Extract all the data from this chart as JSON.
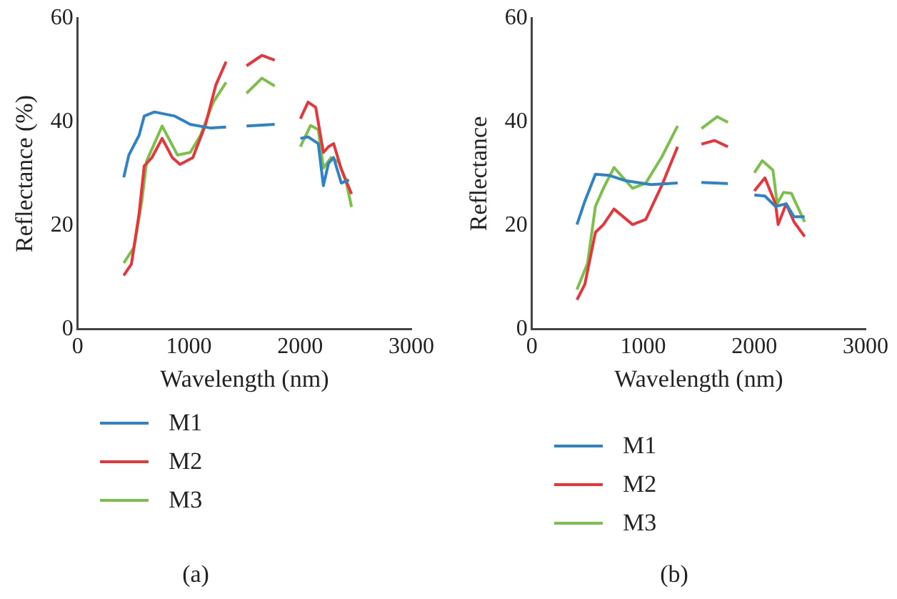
{
  "chart_data": [
    {
      "type": "line",
      "xlabel": "Wavelength (nm)",
      "ylabel": "Reflectance (%)",
      "xlim": [
        0,
        3000
      ],
      "xticks": [
        0,
        1000,
        2000,
        3000
      ],
      "ylim": [
        0,
        60
      ],
      "yticks": [
        0,
        20,
        40,
        60
      ],
      "grid": false,
      "legend": "bottom",
      "marker": "none",
      "annotations": [
        "(a)"
      ],
      "series": [
        {
          "name": "M1",
          "color": "#2e83c6",
          "x": [
            414,
            460,
            552,
            598,
            690,
            874,
            1012,
            1196,
            1334,
            1420,
            1518,
            1771,
            1890,
            2002,
            2071,
            2163,
            2209,
            2255,
            2301,
            2370,
            2439
          ],
          "values": [
            29.3,
            33.6,
            37.4,
            41.1,
            41.9,
            41.1,
            39.5,
            38.8,
            39.0,
            null,
            39.2,
            39.5,
            null,
            36.8,
            37.1,
            35.8,
            27.7,
            32.0,
            33.1,
            28.2,
            28.8
          ]
        },
        {
          "name": "M2",
          "color": "#e8353a",
          "x": [
            414,
            483,
            552,
            598,
            667,
            759,
            851,
            920,
            1035,
            1150,
            1242,
            1334,
            1420,
            1518,
            1656,
            1771,
            1890,
            2002,
            2071,
            2140,
            2209,
            2255,
            2301,
            2370,
            2462
          ],
          "values": [
            10.4,
            12.6,
            22.3,
            31.5,
            33.1,
            36.8,
            33.1,
            31.8,
            33.1,
            39.5,
            47.1,
            51.6,
            null,
            50.8,
            52.8,
            51.9,
            null,
            40.6,
            43.8,
            42.8,
            34.1,
            35.2,
            35.8,
            30.9,
            26.1
          ]
        },
        {
          "name": "M3",
          "color": "#7bc04a",
          "x": [
            414,
            506,
            575,
            621,
            759,
            897,
            1012,
            1104,
            1219,
            1334,
            1420,
            1518,
            1656,
            1771,
            1890,
            2002,
            2094,
            2163,
            2209,
            2278,
            2347,
            2416,
            2462
          ],
          "values": [
            12.8,
            15.8,
            24.5,
            32.5,
            39.2,
            33.6,
            34.1,
            37.4,
            43.8,
            47.6,
            null,
            45.5,
            48.4,
            46.9,
            null,
            35.2,
            39.3,
            38.5,
            31.1,
            33.1,
            32.2,
            28.2,
            23.6
          ]
        }
      ]
    },
    {
      "type": "line",
      "xlabel": "Wavelength (nm)",
      "ylabel": "Reflectance",
      "xlim": [
        0,
        3000
      ],
      "xticks": [
        0,
        1000,
        2000,
        3000
      ],
      "ylim": [
        0,
        60
      ],
      "yticks": [
        0,
        20,
        40,
        60
      ],
      "grid": false,
      "legend": "bottom",
      "marker": "none",
      "annotations": [
        "(b)"
      ],
      "series": [
        {
          "name": "M1",
          "color": "#2e83c6",
          "x": [
            405,
            476,
            571,
            690,
            833,
            1071,
            1310,
            1420,
            1524,
            1762,
            1890,
            2000,
            2095,
            2190,
            2286,
            2357,
            2452
          ],
          "values": [
            20.2,
            24.7,
            29.9,
            29.7,
            28.7,
            27.9,
            28.2,
            null,
            28.3,
            28.1,
            null,
            25.9,
            25.7,
            23.7,
            24.2,
            21.7,
            21.7
          ]
        },
        {
          "name": "M2",
          "color": "#e8353a",
          "x": [
            405,
            476,
            571,
            643,
            738,
            905,
            1024,
            1167,
            1310,
            1420,
            1524,
            1643,
            1762,
            1890,
            2000,
            2095,
            2190,
            2214,
            2286,
            2357,
            2452
          ],
          "values": [
            5.7,
            8.7,
            18.7,
            20.2,
            23.2,
            20.2,
            21.2,
            27.7,
            35.2,
            null,
            35.7,
            36.4,
            35.2,
            null,
            26.7,
            29.2,
            24.2,
            20.2,
            24.2,
            20.7,
            17.9
          ]
        },
        {
          "name": "M3",
          "color": "#7bc04a",
          "x": [
            405,
            500,
            571,
            643,
            738,
            905,
            1024,
            1167,
            1310,
            1420,
            1524,
            1667,
            1762,
            1890,
            2000,
            2071,
            2167,
            2205,
            2262,
            2333,
            2452
          ],
          "values": [
            7.7,
            12.7,
            23.7,
            27.2,
            31.2,
            27.2,
            28.2,
            33.2,
            39.2,
            null,
            38.7,
            41.0,
            39.9,
            null,
            30.2,
            32.5,
            30.7,
            24.2,
            26.4,
            26.2,
            20.7
          ]
        }
      ]
    }
  ]
}
